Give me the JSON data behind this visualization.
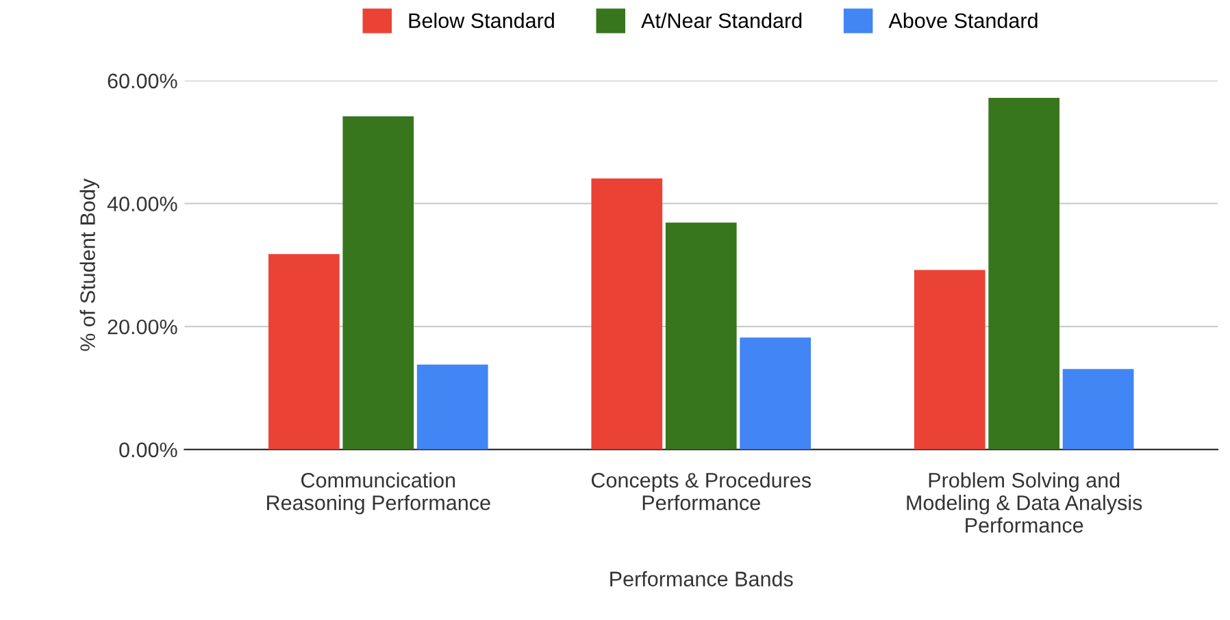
{
  "chart_data": {
    "type": "bar",
    "xlabel": "Performance Bands",
    "ylabel": "% of Student Body",
    "categories": [
      "Communcication\nReasoning Performance",
      "Concepts & Procedures\nPerformance",
      "Problem Solving and\nModeling & Data Analysis\nPerformance"
    ],
    "series": [
      {
        "name": "Below Standard",
        "color": "#ea4335",
        "values": [
          31.8,
          44.1,
          29.2
        ]
      },
      {
        "name": "At/Near Standard",
        "color": "#38761d",
        "values": [
          54.2,
          36.9,
          57.2
        ]
      },
      {
        "name": "Above Standard",
        "color": "#4285f4",
        "values": [
          13.8,
          18.2,
          13.1
        ]
      }
    ],
    "ylim": [
      0,
      60
    ],
    "yticks": [
      {
        "value": 0,
        "label": "0.00%"
      },
      {
        "value": 20,
        "label": "20.00%"
      },
      {
        "value": 40,
        "label": "40.00%"
      },
      {
        "value": 60,
        "label": "60.00%"
      }
    ],
    "grid": "y",
    "legend": "top"
  }
}
